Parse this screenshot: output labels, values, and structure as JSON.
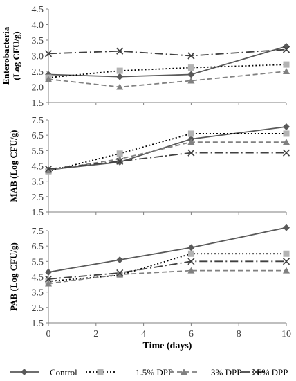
{
  "chart_data": {
    "type": "line",
    "x_values": [
      0,
      3,
      6,
      10
    ],
    "xlabel": "Time (days)",
    "x_ticks": [
      "0",
      "2",
      "4",
      "6",
      "8",
      "10"
    ],
    "xlim": [
      0,
      10
    ],
    "grid": false,
    "legend_position": "bottom",
    "series_styles": [
      {
        "name": "Control",
        "color": "#595959",
        "dash": "",
        "marker": "diamond"
      },
      {
        "name": "1.5% DPP",
        "color": "#000000",
        "dash": "2,3",
        "marker": "square",
        "marker_color": "#b3b3b3"
      },
      {
        "name": "3% DPP",
        "color": "#808080",
        "dash": "7,4",
        "marker": "triangle"
      },
      {
        "name": "6% DPP",
        "color": "#404040",
        "dash": "12,4,2,4",
        "marker": "x"
      }
    ],
    "panels": [
      {
        "ylabel": [
          "Enterobacteria",
          "(Log CFU/g)"
        ],
        "ylim": [
          1.5,
          4.5
        ],
        "y_ticks": [
          "1.5",
          "2.0",
          "2.5",
          "3.0",
          "3.5",
          "4.0",
          "4.5"
        ],
        "series": [
          {
            "name": "Control",
            "values": [
              2.4,
              2.33,
              2.4,
              3.3
            ]
          },
          {
            "name": "1.5% DPP",
            "values": [
              2.3,
              2.52,
              2.62,
              2.72
            ]
          },
          {
            "name": "3% DPP",
            "values": [
              2.25,
              2.0,
              2.2,
              2.5
            ]
          },
          {
            "name": "6% DPP",
            "values": [
              3.07,
              3.15,
              3.0,
              3.2
            ]
          }
        ]
      },
      {
        "ylabel": [
          "MAB (Log CFU/g)"
        ],
        "ylim": [
          1.5,
          7.5
        ],
        "y_ticks": [
          "1.5",
          "2.5",
          "3.5",
          "4.5",
          "5.5",
          "6.5",
          "7.5"
        ],
        "series": [
          {
            "name": "Control",
            "values": [
              4.25,
              4.75,
              6.25,
              7.05
            ]
          },
          {
            "name": "1.5% DPP",
            "values": [
              4.15,
              5.3,
              6.6,
              6.6
            ]
          },
          {
            "name": "3% DPP",
            "values": [
              4.2,
              4.95,
              6.05,
              6.05
            ]
          },
          {
            "name": "6% DPP",
            "values": [
              4.3,
              4.8,
              5.35,
              5.35
            ]
          }
        ]
      },
      {
        "ylabel": [
          "PAB (Log CFU/g)"
        ],
        "ylim": [
          1.5,
          7.5
        ],
        "y_ticks": [
          "1.5",
          "2.5",
          "3.5",
          "4.5",
          "5.5",
          "6.5",
          "7.5"
        ],
        "series": [
          {
            "name": "Control",
            "values": [
              4.8,
              5.6,
              6.4,
              7.7
            ]
          },
          {
            "name": "1.5% DPP",
            "values": [
              4.2,
              4.6,
              6.0,
              6.0
            ]
          },
          {
            "name": "3% DPP",
            "values": [
              4.05,
              4.65,
              4.9,
              4.9
            ]
          },
          {
            "name": "6% DPP",
            "values": [
              4.35,
              4.75,
              5.5,
              5.5
            ]
          }
        ]
      }
    ]
  },
  "legend": {
    "items": [
      "Control",
      "1.5% DPP",
      "3% DPP",
      "6% DPP"
    ]
  }
}
